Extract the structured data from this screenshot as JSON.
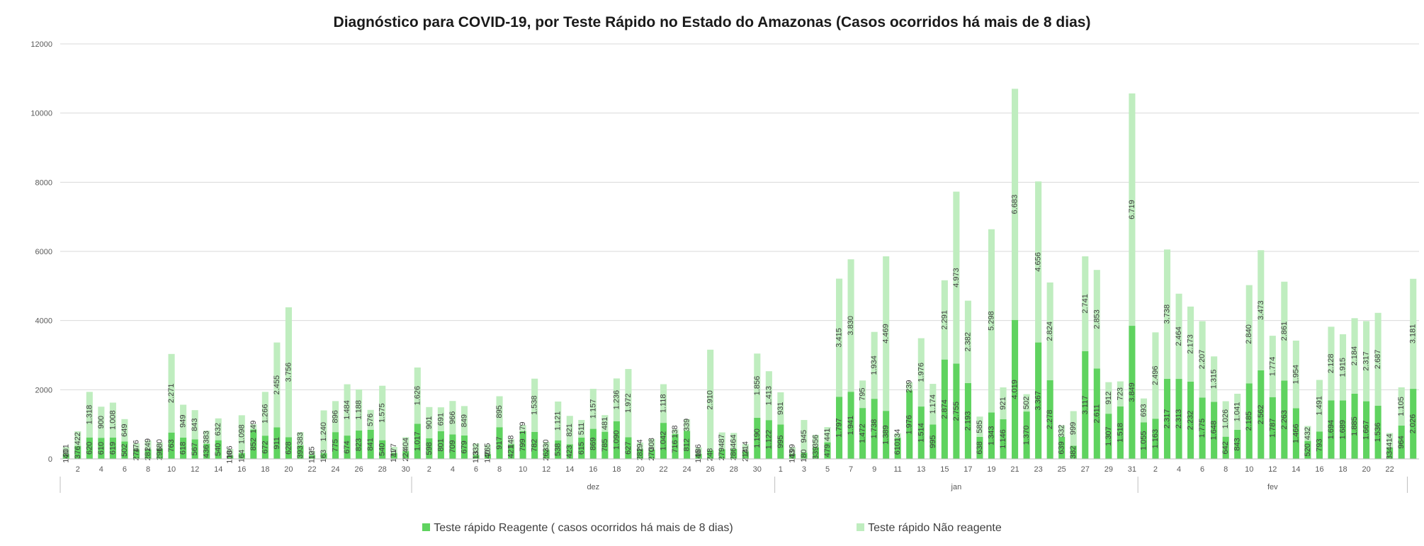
{
  "chart_data": {
    "type": "bar",
    "stacked": true,
    "title": "Diagnóstico para COVID-19, por  Teste Rápido no Estado do Amazonas (Casos ocorridos há mais de 8 dias)",
    "xlabel": "",
    "ylabel": "",
    "ylim": [
      0,
      12000
    ],
    "yticks": [
      0,
      2000,
      4000,
      6000,
      8000,
      10000,
      12000
    ],
    "grid": true,
    "legend_position": "bottom",
    "colors": {
      "reagente": "#5fd35f",
      "nao_reagente": "#bfedbf"
    },
    "months": [
      {
        "label": "",
        "start_day": 1,
        "n_days": 30
      },
      {
        "label": "dez",
        "start_day": 1,
        "n_days": 31
      },
      {
        "label": "jan",
        "start_day": 1,
        "n_days": 31
      },
      {
        "label": "fev",
        "start_day": 1,
        "n_days": 23
      }
    ],
    "series": [
      {
        "name": "Teste rápido Reagente ( casos ocorridos há mais de 8 dias)",
        "values": [
          140,
          376,
          620,
          610,
          619,
          502,
          274,
          281,
          296,
          763,
          618,
          567,
          436,
          540,
          100,
          164,
          852,
          672,
          911,
          628,
          393,
          110,
          163,
          775,
          674,
          823,
          841,
          540,
          171,
          224,
          1017,
          598,
          801,
          709,
          679,
          113,
          140,
          917,
          421,
          799,
          782,
          263,
          538,
          423,
          615,
          869,
          785,
          1090,
          627,
          282,
          270,
          1042,
          716,
          812,
          146,
          248,
          279,
          286,
          214,
          1190,
          1122,
          995,
          143,
          180,
          339,
          479,
          1797,
          1941,
          1472,
          1738,
          1389,
          610,
          1976,
          1514,
          995,
          2874,
          2755,
          2193,
          638,
          1343,
          1146,
          4019,
          1370,
          3367,
          2278,
          639,
          382,
          3117,
          2611,
          1307,
          1518,
          3849,
          1055,
          1163,
          2317,
          2313,
          2232,
          1775,
          1648,
          642,
          843,
          2185,
          2562,
          1787,
          2263,
          1466,
          520,
          793,
          1694,
          1689,
          1885,
          1667,
          1536,
          334,
          964,
          2026
        ]
      },
      {
        "name": "Teste rápido Não reagente",
        "values": [
          201,
          422,
          1318,
          900,
          1008,
          649,
          176,
          249,
          180,
          2271,
          949,
          843,
          383,
          632,
          186,
          1098,
          149,
          1266,
          2455,
          3756,
          383,
          125,
          1240,
          896,
          1484,
          1188,
          576,
          1575,
          177,
          404,
          1626,
          901,
          691,
          966,
          849,
          332,
          265,
          895,
          148,
          179,
          1538,
          230,
          1121,
          821,
          511,
          1157,
          481,
          1236,
          1972,
          194,
          308,
          1118,
          138,
          339,
          186,
          2910,
          487,
          464,
          214,
          1856,
          1413,
          931,
          199,
          945,
          356,
          441,
          3415,
          3830,
          795,
          1934,
          4469,
          134,
          239,
          1976,
          1174,
          2291,
          4973,
          2382,
          585,
          5298,
          921,
          6683,
          502,
          4656,
          2824,
          332,
          999,
          2741,
          2853,
          912,
          723,
          6719,
          693,
          2496,
          3738,
          2464,
          2173,
          2207,
          1315,
          1026,
          1041,
          2840,
          3473,
          1774,
          2861,
          1954,
          432,
          1491,
          2128,
          1915,
          2184,
          2317,
          2687,
          414,
          1105,
          3181
        ]
      }
    ],
    "data_labels": {
      "reagente": [
        "140",
        "376",
        "620",
        "610",
        "619",
        "502",
        "274",
        "281",
        "296",
        "763",
        "618",
        "567",
        "436",
        "540",
        "100",
        "164",
        "852",
        "672",
        "911",
        "628",
        "393",
        "110",
        "163",
        "775",
        "674",
        "823",
        "841",
        "540",
        "171",
        "224",
        "1.017",
        "598",
        "801",
        "709",
        "679",
        "113",
        "140",
        "917",
        "421",
        "799",
        "782",
        "263",
        "538",
        "423",
        "615",
        "869",
        "785",
        "1.090",
        "627",
        "282",
        "270",
        "1.042",
        "716",
        "812",
        "146",
        "248",
        "279",
        "286",
        "214",
        "1.190",
        "1.122",
        "995",
        "143",
        "180",
        "339",
        "479",
        "1.797",
        "1.941",
        "1.472",
        "1.738",
        "1.389",
        "610",
        "1.976",
        "1.514",
        "995",
        "2.874",
        "2.755",
        "2.193",
        "638",
        "1.343",
        "1.146",
        "4.019",
        "1.370",
        "3.367",
        "2.278",
        "639",
        "382",
        "3.117",
        "2.611",
        "1.307",
        "1.518",
        "3.849",
        "1.055",
        "1.163",
        "2.317",
        "2.313",
        "2.232",
        "1.775",
        "1.648",
        "642",
        "843",
        "2.185",
        "2.562",
        "1.787",
        "2.263",
        "1.466",
        "520",
        "793",
        "1.694",
        "1.689",
        "1.885",
        "1.667",
        "1.536",
        "334",
        "964",
        "2.026"
      ],
      "nao_reagente": [
        "201",
        "422",
        "1.318",
        "900",
        "1.008",
        "649",
        "176",
        "249",
        "180",
        "2.271",
        "949",
        "843",
        "383",
        "632",
        "186",
        "1.098",
        "149",
        "1.266",
        "2.455",
        "3.756",
        "383",
        "125",
        "1.240",
        "896",
        "1.484",
        "1.188",
        "576",
        "1.575",
        "177",
        "404",
        "1.626",
        "901",
        "691",
        "966",
        "849",
        "332",
        "265",
        "895",
        "148",
        "179",
        "1.538",
        "230",
        "1.121",
        "821",
        "511",
        "1.157",
        "481",
        "1.236",
        "1.972",
        "194",
        "308",
        "1.118",
        "138",
        "339",
        "186",
        "2.910",
        "487",
        "464",
        "214",
        "1.856",
        "1.413",
        "931",
        "199",
        "945",
        "356",
        "441",
        "3.415",
        "3.830",
        "795",
        "1.934",
        "4.469",
        "134",
        "239",
        "1.976",
        "1.174",
        "2.291",
        "4.973",
        "2.382",
        "585",
        "5.298",
        "921",
        "6.683",
        "502",
        "4.656",
        "2.824",
        "332",
        "999",
        "2.741",
        "2.853",
        "912",
        "723",
        "6.719",
        "693",
        "2.496",
        "3.738",
        "2.464",
        "2.173",
        "2.207",
        "1.315",
        "1.026",
        "1.041",
        "2.840",
        "3.473",
        "1.774",
        "2.861",
        "1.954",
        "432",
        "1.491",
        "2.128",
        "1.915",
        "2.184",
        "2.317",
        "2.687",
        "414",
        "1.105",
        "3.181"
      ]
    },
    "x_tick_labels": [
      "2",
      "4",
      "6",
      "8",
      "10",
      "12",
      "14",
      "16",
      "18",
      "20",
      "22",
      "24",
      "26",
      "28",
      "30",
      "2",
      "4",
      "6",
      "8",
      "10",
      "12",
      "14",
      "16",
      "18",
      "20",
      "22",
      "24",
      "26",
      "28",
      "30",
      "1",
      "3",
      "5",
      "7",
      "9",
      "11",
      "13",
      "15",
      "17",
      "19",
      "21",
      "23",
      "25",
      "27",
      "29",
      "31",
      "2",
      "4",
      "6",
      "8",
      "10",
      "12",
      "14",
      "16",
      "18",
      "20",
      "22"
    ],
    "y_tick_labels": [
      "0",
      "2000",
      "4000",
      "6000",
      "8000",
      "10000",
      "12000"
    ]
  }
}
